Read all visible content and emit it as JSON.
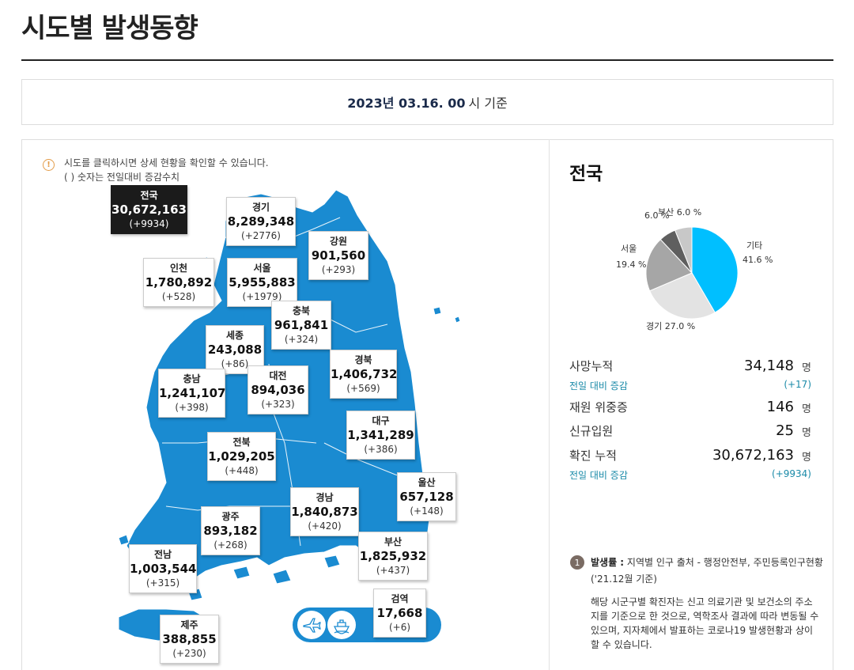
{
  "page": {
    "title": "시도별 발생동향"
  },
  "date": {
    "value": "2023년 03.16. 00",
    "suffix": "시 기준"
  },
  "notice": {
    "icon": "info-icon",
    "line1": "시도를 클릭하시면 상세 현황을 확인할 수 있습니다.",
    "line2": "( ) 숫자는 전일대비 증감수치"
  },
  "regions": {
    "national": {
      "name": "전국",
      "total": "30,672,163",
      "delta": "(+9934)"
    },
    "gyeonggi": {
      "name": "경기",
      "total": "8,289,348",
      "delta": "(+2776)"
    },
    "gangwon": {
      "name": "강원",
      "total": "901,560",
      "delta": "(+293)"
    },
    "incheon": {
      "name": "인천",
      "total": "1,780,892",
      "delta": "(+528)"
    },
    "seoul": {
      "name": "서울",
      "total": "5,955,883",
      "delta": "(+1979)"
    },
    "chungbuk": {
      "name": "충북",
      "total": "961,841",
      "delta": "(+324)"
    },
    "sejong": {
      "name": "세종",
      "total": "243,088",
      "delta": "(+86)"
    },
    "chungnam": {
      "name": "충남",
      "total": "1,241,107",
      "delta": "(+398)"
    },
    "daejeon": {
      "name": "대전",
      "total": "894,036",
      "delta": "(+323)"
    },
    "gyeongbuk": {
      "name": "경북",
      "total": "1,406,732",
      "delta": "(+569)"
    },
    "daegu": {
      "name": "대구",
      "total": "1,341,289",
      "delta": "(+386)"
    },
    "jeonbuk": {
      "name": "전북",
      "total": "1,029,205",
      "delta": "(+448)"
    },
    "ulsan": {
      "name": "울산",
      "total": "657,128",
      "delta": "(+148)"
    },
    "gwangju": {
      "name": "광주",
      "total": "893,182",
      "delta": "(+268)"
    },
    "gyeongnam": {
      "name": "경남",
      "total": "1,840,873",
      "delta": "(+420)"
    },
    "busan": {
      "name": "부산",
      "total": "1,825,932",
      "delta": "(+437)"
    },
    "jeonnam": {
      "name": "전남",
      "total": "1,003,544",
      "delta": "(+315)"
    },
    "quarantine": {
      "name": "검역",
      "total": "17,668",
      "delta": "(+6)"
    },
    "jeju": {
      "name": "제주",
      "total": "388,855",
      "delta": "(+230)"
    }
  },
  "transport": {
    "air_icon": "airplane-icon",
    "ship_icon": "ship-icon"
  },
  "nation": {
    "title": "전국",
    "pie": {
      "labels": {
        "etc": "기타",
        "etc_pct": "41.6 %",
        "gyeonggi": "경기 27.0 %",
        "seoul": "서울",
        "seoul_pct": "19.4 %",
        "other": "6.0 %",
        "busan": "부산 6.0 %"
      },
      "slices": [
        {
          "name": "기타",
          "percent": 41.6,
          "color": "#00bfff"
        },
        {
          "name": "경기",
          "percent": 27.0,
          "color": "#e3e3e3"
        },
        {
          "name": "서울",
          "percent": 19.4,
          "color": "#a6a6a6"
        },
        {
          "name": "",
          "percent": 6.0,
          "color": "#5f5f5f"
        },
        {
          "name": "부산",
          "percent": 6.0,
          "color": "#c8c8c8"
        }
      ]
    },
    "stats": {
      "deaths_label": "사망누적",
      "deaths_value": "34,148",
      "deaths_unit": "명",
      "deaths_delta_label": "전일 대비 증감",
      "deaths_delta": "(+17)",
      "critical_label": "재원 위중증",
      "critical_value": "146",
      "critical_unit": "명",
      "admit_label": "신규입원",
      "admit_value": "25",
      "admit_unit": "명",
      "confirmed_label": "확진 누적",
      "confirmed_value": "30,672,163",
      "confirmed_unit": "명",
      "confirmed_delta_label": "전일 대비 증감",
      "confirmed_delta": "(+9934)"
    }
  },
  "note": {
    "num": "1",
    "head_bold": "발생률 :",
    "head_text": " 지역별 인구 출처 - 행정안전부, 주민등록인구현황",
    "sub": "('21.12월 기준)",
    "body": "해당 시군구별 확진자는 신고 의료기관 및 보건소의 주소지를 기준으로 한 것으로, 역학조사 결과에 따라 변동될 수 있으며, 지자체에서 발표하는 코로나19 발생현황과 상이할 수 있습니다."
  }
}
